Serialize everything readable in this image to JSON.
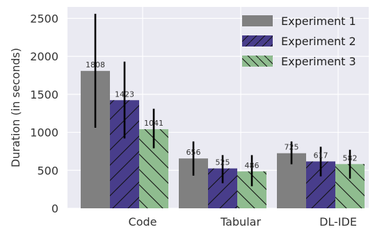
{
  "chart_data": {
    "type": "bar",
    "title": "",
    "xlabel": "",
    "ylabel": "Duration (in seconds)",
    "categories": [
      "Code",
      "Tabular",
      "DL-IDE"
    ],
    "ylim": [
      0,
      2650
    ],
    "yticks": [
      0,
      500,
      1000,
      1500,
      2000,
      2500
    ],
    "grid": true,
    "legend_position": "top-right",
    "series": [
      {
        "name": "Experiment 1",
        "values": [
          1808,
          656,
          725
        ],
        "labels": [
          "1808",
          "656",
          "725"
        ],
        "error_low": [
          1060,
          430,
          580
        ],
        "error_high": [
          2560,
          880,
          880
        ],
        "color": "#808080",
        "hatch": "none"
      },
      {
        "name": "Experiment 2",
        "values": [
          1423,
          525,
          617
        ],
        "labels": [
          "1423",
          "525",
          "617"
        ],
        "error_low": [
          920,
          330,
          420
        ],
        "error_high": [
          1930,
          700,
          810
        ],
        "color": "#483d8b",
        "hatch": "forward"
      },
      {
        "name": "Experiment 3",
        "values": [
          1041,
          486,
          582
        ],
        "labels": [
          "1041",
          "486",
          "582"
        ],
        "error_low": [
          790,
          290,
          390
        ],
        "error_high": [
          1310,
          700,
          770
        ],
        "color": "#8fbc8f",
        "hatch": "backward"
      }
    ]
  }
}
